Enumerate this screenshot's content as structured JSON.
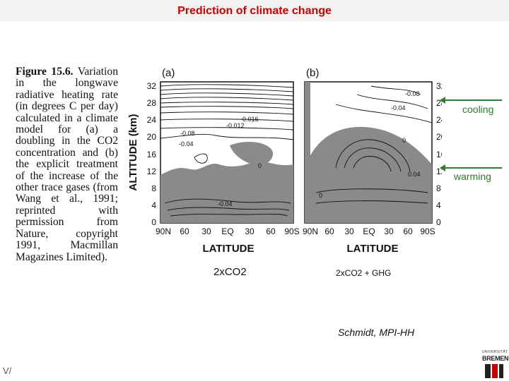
{
  "slide": {
    "title": "Prediction of climate change"
  },
  "caption": {
    "figure_label": "Figure 15.6.",
    "text": "Variation in the longwave radiative heating rate (in degrees C per day) calculated in a climate model for (a) a doubling in the CO2 concentration and (b) the explicit treatment of the increase of the other trace gases (from Wang et al., 1991; reprinted with permission from Nature, copyright 1991, Macmillan Magazines Limited)."
  },
  "figure": {
    "y_axis_label": "ALTITUDE (km)",
    "x_axis_label": "LATITUDE",
    "y_ticks": [
      "32",
      "28",
      "24",
      "20",
      "16",
      "12",
      "8",
      "4",
      "0"
    ],
    "x_ticks": [
      "90N",
      "60",
      "30",
      "EQ",
      "30",
      "60",
      "90S"
    ],
    "panel_a": {
      "label": "(a)",
      "contour_labels": [
        "-0.016",
        "-0.012",
        "-0.08",
        "-0.04",
        "0",
        "-0.04"
      ]
    },
    "panel_b": {
      "label": "(b)",
      "contour_labels": [
        "-0.08",
        "-0.04",
        "0",
        "0.04",
        "0"
      ]
    }
  },
  "annotations": {
    "cooling": "cooling",
    "warming": "warming",
    "panel_a_case": "2xCO2",
    "panel_b_case": "2xCO2 + GHG",
    "credit": "Schmidt, MPI-HH"
  },
  "footer": {
    "corner": "V/"
  },
  "logo": {
    "small_text": "UNIVERSITÄT",
    "name": "BREMEN"
  },
  "colors": {
    "title": "#cc0000",
    "annotation": "#2e7d2e",
    "shade": "#8a8a8a"
  }
}
